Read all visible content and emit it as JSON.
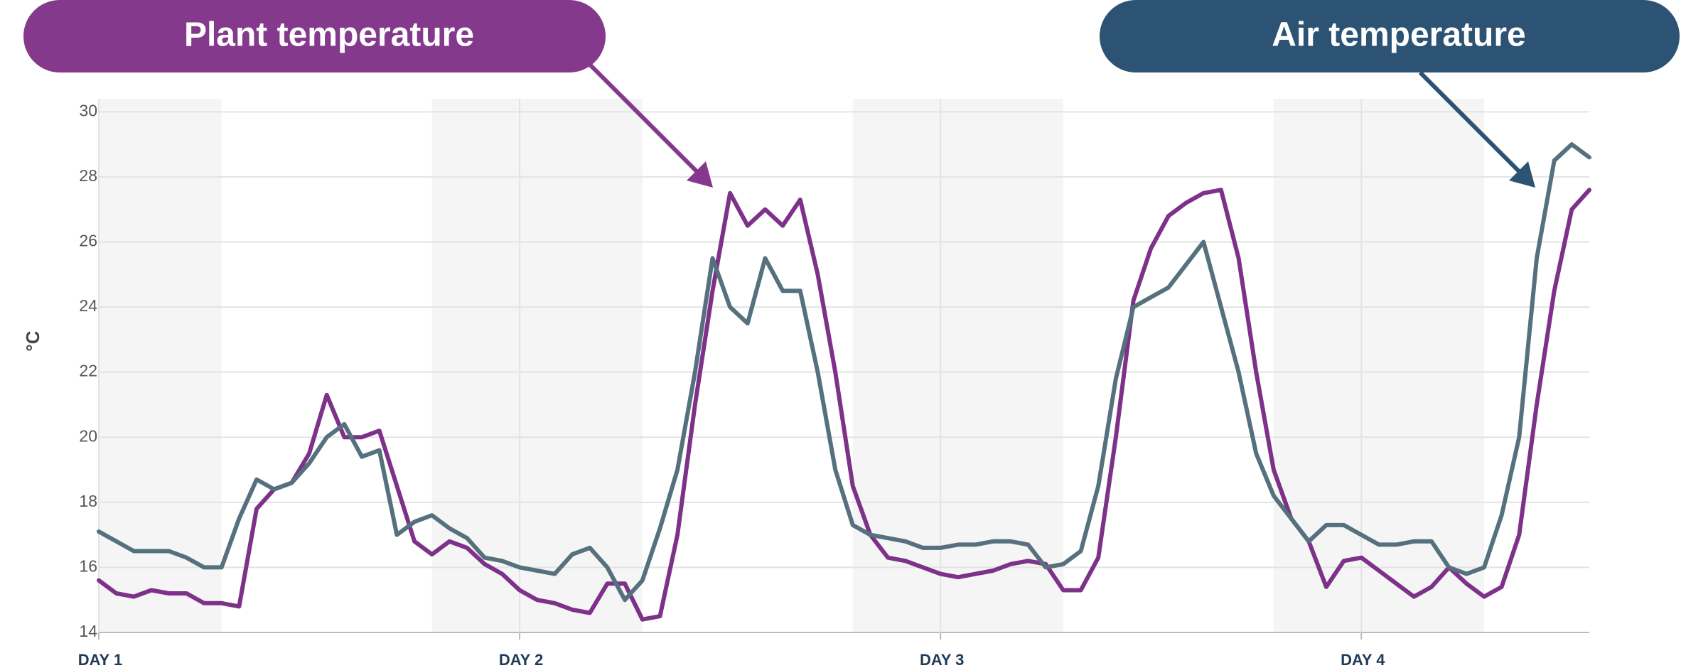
{
  "chart_data": {
    "type": "line",
    "y_label": "°C",
    "x": [
      0,
      1,
      2,
      3,
      4,
      5,
      6,
      7,
      8,
      9,
      10,
      11,
      12,
      13,
      14,
      15,
      16,
      17,
      18,
      19,
      20,
      21,
      22,
      23,
      24,
      25,
      26,
      27,
      28,
      29,
      30,
      31,
      32,
      33,
      34,
      35,
      36,
      37,
      38,
      39,
      40,
      41,
      42,
      43,
      44,
      45,
      46,
      47,
      48,
      49,
      50,
      51,
      52,
      53,
      54,
      55,
      56,
      57,
      58,
      59,
      60,
      61,
      62,
      63,
      64,
      65,
      66,
      67,
      68,
      69,
      70,
      71,
      72,
      73,
      74,
      75,
      76,
      77,
      78,
      79,
      80,
      81,
      82,
      83,
      84,
      85
    ],
    "xlim": [
      0,
      85
    ],
    "xticks": [
      {
        "value": 0,
        "label": "DAY 1"
      },
      {
        "value": 24,
        "label": "DAY 2"
      },
      {
        "value": 48,
        "label": "DAY 3"
      },
      {
        "value": 72,
        "label": "DAY 4"
      }
    ],
    "ylim": [
      14,
      30.4
    ],
    "yticks": [
      14,
      16,
      18,
      20,
      22,
      24,
      26,
      28,
      30
    ],
    "grid": true,
    "shaded_ranges": [
      [
        0,
        7
      ],
      [
        19,
        31
      ],
      [
        43,
        55
      ],
      [
        67,
        79
      ]
    ],
    "shade_color": "#f5f5f5",
    "series": [
      {
        "name": "Plant temperature",
        "color": "#7d3189",
        "label_color": "#84398d",
        "values": [
          15.6,
          15.2,
          15.1,
          15.3,
          15.2,
          15.2,
          14.9,
          14.9,
          14.8,
          17.8,
          18.4,
          18.6,
          19.5,
          21.3,
          20.0,
          20.0,
          20.2,
          18.5,
          16.8,
          16.4,
          16.8,
          16.6,
          16.1,
          15.8,
          15.3,
          15.0,
          14.9,
          14.7,
          14.6,
          15.5,
          15.5,
          14.4,
          14.5,
          17.0,
          21.0,
          24.5,
          27.5,
          26.5,
          27.0,
          26.5,
          27.3,
          25.0,
          22.0,
          18.5,
          17.0,
          16.3,
          16.2,
          16.0,
          15.8,
          15.7,
          15.8,
          15.9,
          16.1,
          16.2,
          16.1,
          15.3,
          15.3,
          16.3,
          20.0,
          24.2,
          25.8,
          26.8,
          27.2,
          27.5,
          27.6,
          25.5,
          22.0,
          19.0,
          17.5,
          16.8,
          15.4,
          16.2,
          16.3,
          15.9,
          15.5,
          15.1,
          15.4,
          16.0,
          15.5,
          15.1,
          15.4,
          17.0,
          21.0,
          24.5,
          27.0,
          27.6
        ]
      },
      {
        "name": "Air temperature",
        "color": "#55717d",
        "label_color": "#2c5373",
        "values": [
          17.1,
          16.8,
          16.5,
          16.5,
          16.5,
          16.3,
          16.0,
          16.0,
          17.5,
          18.7,
          18.4,
          18.6,
          19.2,
          20.0,
          20.4,
          19.4,
          19.6,
          17.0,
          17.4,
          17.6,
          17.2,
          16.9,
          16.3,
          16.2,
          16.0,
          15.9,
          15.8,
          16.4,
          16.6,
          16.0,
          15.0,
          15.6,
          17.2,
          19.0,
          22.0,
          25.5,
          24.0,
          23.5,
          25.5,
          24.5,
          24.5,
          22.0,
          19.0,
          17.3,
          17.0,
          16.9,
          16.8,
          16.6,
          16.6,
          16.7,
          16.7,
          16.8,
          16.8,
          16.7,
          16.0,
          16.1,
          16.5,
          18.5,
          21.8,
          24.0,
          24.3,
          24.6,
          25.3,
          26.0,
          24.0,
          22.0,
          19.5,
          18.2,
          17.5,
          16.8,
          17.3,
          17.3,
          17.0,
          16.7,
          16.7,
          16.8,
          16.8,
          16.0,
          15.8,
          16.0,
          17.6,
          20.0,
          25.5,
          28.5,
          29.0,
          28.6
        ]
      }
    ]
  }
}
